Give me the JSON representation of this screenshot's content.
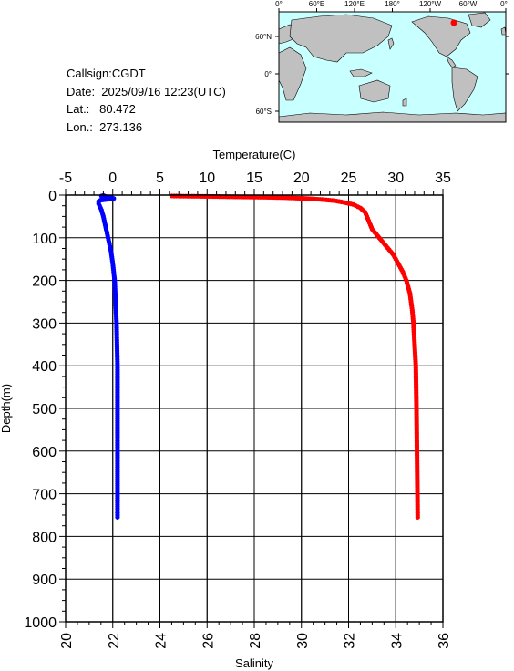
{
  "info": {
    "callsign": "Callsign:CGDT",
    "date": "Date:  2025/09/16 12:23(UTC)",
    "lat": "Lat.:   80.472",
    "lon": "Lon.:  273.136"
  },
  "map": {
    "top_labels": [
      "0°",
      "60°E",
      "120°E",
      "180°",
      "120°W",
      "60°W",
      "0°"
    ],
    "left_labels": [
      "60°N",
      "0°",
      "60°S"
    ],
    "ocean_color": "#c8ffff",
    "land_color": "#c0c0c0",
    "marker_color": "#ff0000"
  },
  "chart_data": {
    "type": "scatter",
    "depth_axis": {
      "label": "Depth(m)",
      "range": [
        0,
        1000
      ],
      "inverted": true,
      "ticks": [
        0,
        100,
        200,
        300,
        400,
        500,
        600,
        700,
        800,
        900,
        1000
      ]
    },
    "temperature_axis": {
      "label": "Temperature(C)",
      "position": "top",
      "range": [
        -5,
        35
      ],
      "ticks": [
        -5,
        0,
        5,
        10,
        15,
        20,
        25,
        30,
        35
      ],
      "color": "#0000ff"
    },
    "salinity_axis": {
      "label": "Salinity",
      "position": "bottom",
      "range": [
        20,
        36
      ],
      "ticks": [
        20,
        22,
        24,
        26,
        28,
        30,
        32,
        34,
        36
      ],
      "color": "#ff0000"
    },
    "grid": true,
    "series": [
      {
        "variable": "temperature",
        "color": "#0000ff",
        "points": [
          [
            -1.0,
            1
          ],
          [
            -1.2,
            2
          ],
          [
            -0.8,
            3
          ],
          [
            -0.5,
            4
          ],
          [
            -0.3,
            5
          ],
          [
            -0.2,
            6
          ],
          [
            0.1,
            8
          ],
          [
            -0.6,
            10
          ],
          [
            -1.3,
            12
          ],
          [
            -1.5,
            15
          ],
          [
            -1.5,
            20
          ],
          [
            -1.4,
            25
          ],
          [
            -1.2,
            35
          ],
          [
            -1.0,
            50
          ],
          [
            -0.8,
            70
          ],
          [
            -0.5,
            100
          ],
          [
            -0.2,
            130
          ],
          [
            0.0,
            160
          ],
          [
            0.2,
            200
          ],
          [
            0.3,
            250
          ],
          [
            0.4,
            300
          ],
          [
            0.45,
            350
          ],
          [
            0.5,
            400
          ],
          [
            0.5,
            500
          ],
          [
            0.5,
            600
          ],
          [
            0.5,
            700
          ],
          [
            0.5,
            755
          ]
        ]
      },
      {
        "variable": "salinity",
        "color": "#ff0000",
        "points": [
          [
            24.5,
            2
          ],
          [
            25.0,
            2.5
          ],
          [
            26.0,
            3
          ],
          [
            27.2,
            4
          ],
          [
            28.5,
            5
          ],
          [
            29.3,
            6
          ],
          [
            30.2,
            8
          ],
          [
            30.8,
            10
          ],
          [
            31.4,
            13
          ],
          [
            31.8,
            17
          ],
          [
            32.2,
            22
          ],
          [
            32.5,
            30
          ],
          [
            32.7,
            40
          ],
          [
            32.85,
            60
          ],
          [
            33.0,
            80
          ],
          [
            33.3,
            100
          ],
          [
            33.6,
            120
          ],
          [
            33.9,
            140
          ],
          [
            34.1,
            160
          ],
          [
            34.3,
            180
          ],
          [
            34.45,
            200
          ],
          [
            34.6,
            230
          ],
          [
            34.7,
            270
          ],
          [
            34.75,
            300
          ],
          [
            34.8,
            350
          ],
          [
            34.85,
            400
          ],
          [
            34.88,
            500
          ],
          [
            34.9,
            600
          ],
          [
            34.92,
            700
          ],
          [
            34.93,
            755
          ]
        ]
      }
    ]
  }
}
